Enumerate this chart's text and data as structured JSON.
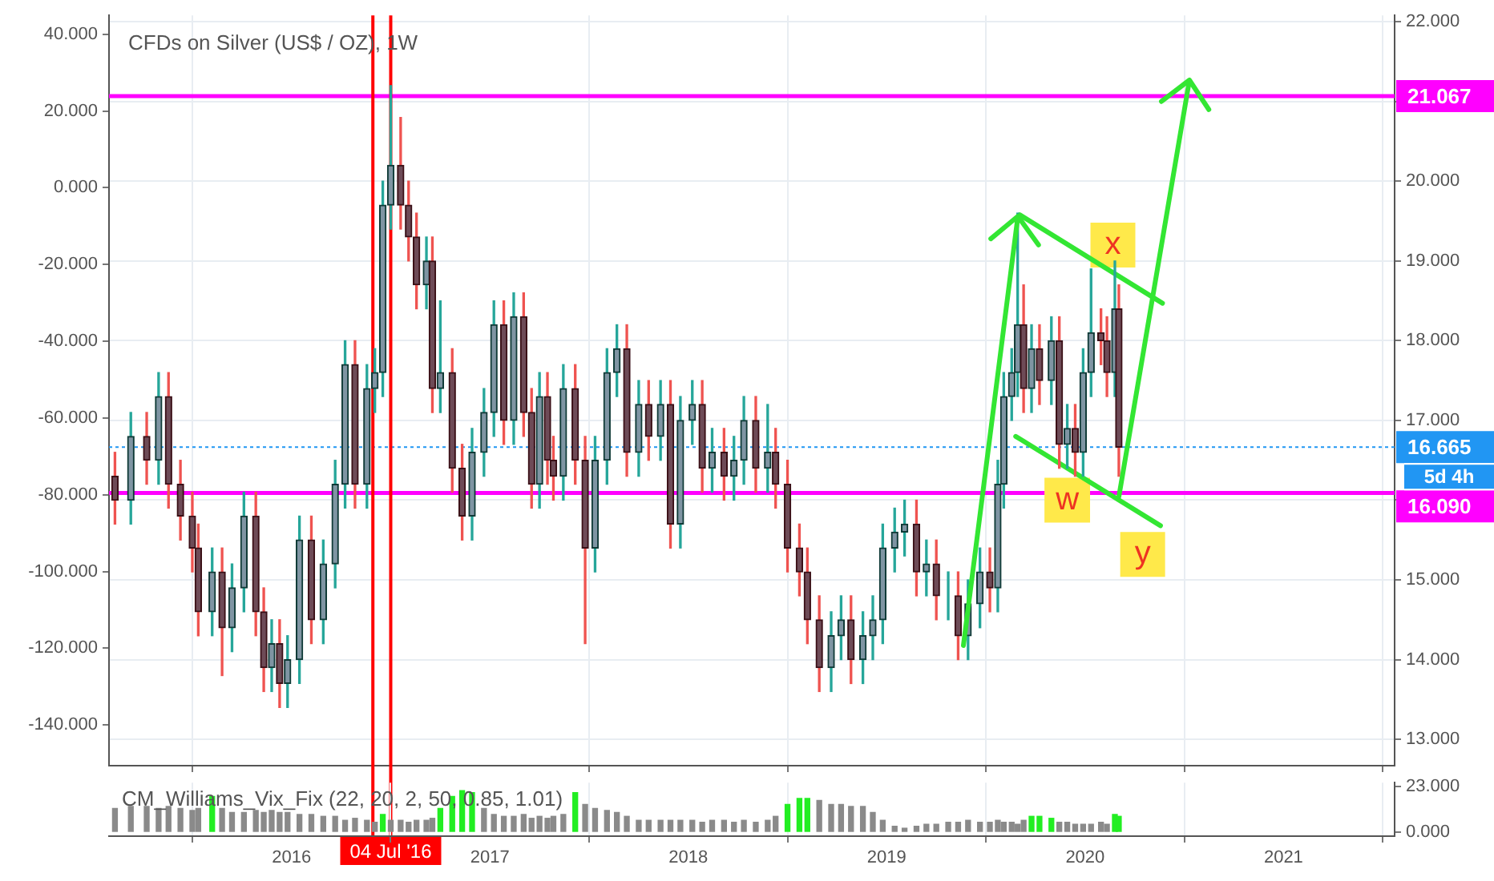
{
  "chart_data": [
    {
      "type": "candlestick",
      "title": "CFDs on Silver (US$ / OZ), 1W",
      "x": [
        2015.11,
        2015.19,
        2015.27,
        2015.33,
        2015.38,
        2015.44,
        2015.5,
        2015.53,
        2015.6,
        2015.65,
        2015.7,
        2015.76,
        2015.82,
        2015.86,
        2015.9,
        2015.94,
        2015.98,
        2016.04,
        2016.1,
        2016.16,
        2016.22,
        2016.27,
        2016.32,
        2016.38,
        2016.42,
        2016.46,
        2016.5,
        2016.55,
        2016.59,
        2016.63,
        2016.68,
        2016.71,
        2016.75,
        2016.81,
        2016.86,
        2016.91,
        2016.97,
        2017.02,
        2017.07,
        2017.12,
        2017.17,
        2017.21,
        2017.25,
        2017.29,
        2017.32,
        2017.37,
        2017.43,
        2017.48,
        2017.53,
        2017.59,
        2017.64,
        2017.69,
        2017.75,
        2017.8,
        2017.86,
        2017.91,
        2017.96,
        2018.02,
        2018.07,
        2018.12,
        2018.18,
        2018.23,
        2018.28,
        2018.34,
        2018.4,
        2018.44,
        2018.5,
        2018.56,
        2018.6,
        2018.66,
        2018.72,
        2018.77,
        2018.82,
        2018.88,
        2018.93,
        2018.98,
        2019.04,
        2019.09,
        2019.15,
        2019.2,
        2019.25,
        2019.31,
        2019.36,
        2019.41,
        2019.47,
        2019.52,
        2019.56,
        2019.59,
        2019.63,
        2019.66,
        2019.69,
        2019.73,
        2019.77,
        2019.83,
        2019.87,
        2019.91,
        2019.95,
        2019.99,
        2020.03,
        2020.08,
        2020.11,
        2020.15,
        2020.17
      ],
      "ohlc": [
        [
          16.3,
          16.6,
          15.7,
          16.0
        ],
        [
          16.0,
          17.1,
          15.7,
          16.8
        ],
        [
          16.8,
          17.1,
          16.2,
          16.5
        ],
        [
          16.5,
          17.6,
          16.2,
          17.3
        ],
        [
          17.3,
          17.6,
          15.9,
          16.2
        ],
        [
          16.2,
          16.5,
          15.5,
          15.8
        ],
        [
          15.8,
          16.1,
          15.1,
          15.4
        ],
        [
          15.4,
          15.7,
          14.3,
          14.6
        ],
        [
          14.6,
          15.4,
          14.3,
          15.1
        ],
        [
          15.1,
          15.4,
          13.8,
          14.4
        ],
        [
          14.4,
          15.2,
          14.1,
          14.9
        ],
        [
          14.9,
          16.1,
          14.6,
          15.8
        ],
        [
          15.8,
          16.1,
          14.3,
          14.6
        ],
        [
          14.6,
          14.9,
          13.6,
          13.9
        ],
        [
          13.9,
          14.5,
          13.6,
          14.2
        ],
        [
          14.2,
          14.5,
          13.4,
          13.7
        ],
        [
          13.7,
          14.3,
          13.4,
          14.0
        ],
        [
          14.0,
          15.8,
          13.7,
          15.5
        ],
        [
          15.5,
          15.8,
          14.2,
          14.5
        ],
        [
          14.5,
          15.5,
          14.2,
          15.2
        ],
        [
          15.2,
          16.5,
          14.9,
          16.2
        ],
        [
          16.2,
          18.0,
          15.9,
          17.7
        ],
        [
          17.7,
          18.0,
          15.9,
          16.2
        ],
        [
          16.2,
          17.7,
          15.9,
          17.4
        ],
        [
          17.4,
          17.9,
          17.1,
          17.6
        ],
        [
          17.6,
          20.0,
          17.3,
          19.7
        ],
        [
          19.7,
          21.2,
          19.4,
          20.2
        ],
        [
          20.2,
          20.8,
          19.4,
          19.7
        ],
        [
          19.7,
          20.0,
          19.0,
          19.3
        ],
        [
          19.3,
          19.6,
          18.4,
          18.7
        ],
        [
          18.7,
          19.3,
          18.4,
          19.0
        ],
        [
          19.0,
          19.3,
          17.1,
          17.4
        ],
        [
          17.4,
          18.5,
          17.1,
          17.6
        ],
        [
          17.6,
          17.9,
          16.1,
          16.4
        ],
        [
          16.4,
          16.7,
          15.5,
          15.8
        ],
        [
          15.8,
          16.9,
          15.5,
          16.6
        ],
        [
          16.6,
          17.4,
          16.3,
          17.1
        ],
        [
          17.1,
          18.5,
          16.8,
          18.2
        ],
        [
          18.2,
          18.5,
          16.7,
          17.0
        ],
        [
          17.0,
          18.6,
          16.7,
          18.3
        ],
        [
          18.3,
          18.6,
          16.8,
          17.1
        ],
        [
          17.1,
          17.4,
          15.9,
          16.2
        ],
        [
          16.2,
          17.6,
          15.9,
          17.3
        ],
        [
          17.3,
          17.6,
          16.2,
          16.5
        ],
        [
          16.5,
          16.8,
          16.0,
          16.3
        ],
        [
          16.3,
          17.7,
          16.0,
          17.4
        ],
        [
          17.4,
          17.7,
          16.2,
          16.5
        ],
        [
          16.5,
          16.8,
          14.2,
          15.4
        ],
        [
          15.4,
          16.8,
          15.1,
          16.5
        ],
        [
          16.5,
          17.9,
          16.2,
          17.6
        ],
        [
          17.6,
          18.2,
          17.3,
          17.9
        ],
        [
          17.9,
          18.2,
          16.3,
          16.6
        ],
        [
          16.6,
          17.5,
          16.3,
          17.2
        ],
        [
          17.2,
          17.5,
          16.5,
          16.8
        ],
        [
          16.8,
          17.5,
          16.5,
          17.2
        ],
        [
          17.2,
          17.5,
          15.4,
          15.7
        ],
        [
          15.7,
          17.3,
          15.4,
          17.0
        ],
        [
          17.0,
          17.5,
          16.7,
          17.2
        ],
        [
          17.2,
          17.5,
          16.1,
          16.4
        ],
        [
          16.4,
          16.9,
          16.1,
          16.6
        ],
        [
          16.6,
          16.9,
          16.0,
          16.3
        ],
        [
          16.3,
          16.8,
          16.0,
          16.5
        ],
        [
          16.5,
          17.3,
          16.2,
          17.0
        ],
        [
          17.0,
          17.3,
          16.1,
          16.4
        ],
        [
          16.4,
          17.2,
          16.1,
          16.6
        ],
        [
          16.6,
          16.9,
          15.9,
          16.2
        ],
        [
          16.2,
          16.5,
          15.1,
          15.4
        ],
        [
          15.4,
          15.7,
          14.8,
          15.1
        ],
        [
          15.1,
          15.4,
          14.2,
          14.5
        ],
        [
          14.5,
          14.8,
          13.6,
          13.9
        ],
        [
          13.9,
          14.6,
          13.6,
          14.3
        ],
        [
          14.3,
          14.8,
          14.0,
          14.5
        ],
        [
          14.5,
          14.8,
          13.7,
          14.0
        ],
        [
          14.0,
          14.6,
          13.7,
          14.3
        ],
        [
          14.3,
          14.8,
          14.0,
          14.5
        ],
        [
          14.5,
          15.7,
          14.2,
          15.4
        ],
        [
          15.4,
          15.9,
          15.1,
          15.6
        ],
        [
          15.6,
          16.0,
          15.3,
          15.7
        ],
        [
          15.7,
          16.0,
          14.8,
          15.1
        ],
        [
          15.1,
          15.5,
          14.8,
          15.2
        ],
        [
          15.2,
          15.5,
          14.5,
          14.8
        ],
        [
          14.8,
          15.1,
          14.5,
          14.8
        ],
        [
          14.8,
          15.1,
          14.0,
          14.3
        ],
        [
          14.3,
          15.0,
          14.0,
          14.7
        ],
        [
          14.7,
          15.4,
          14.4,
          15.1
        ],
        [
          15.1,
          15.4,
          14.6,
          14.9
        ],
        [
          14.9,
          16.5,
          14.6,
          16.2
        ],
        [
          16.2,
          17.6,
          15.9,
          17.3
        ],
        [
          17.3,
          17.9,
          17.0,
          17.6
        ],
        [
          17.6,
          19.6,
          17.3,
          18.2
        ],
        [
          18.2,
          18.7,
          17.1,
          17.4
        ],
        [
          17.4,
          18.2,
          17.1,
          17.9
        ],
        [
          17.9,
          18.2,
          17.2,
          17.5
        ],
        [
          17.5,
          18.3,
          17.2,
          18.0
        ],
        [
          18.0,
          18.3,
          16.4,
          16.7
        ],
        [
          16.7,
          17.2,
          16.4,
          16.9
        ],
        [
          16.9,
          17.2,
          16.3,
          16.6
        ],
        [
          16.6,
          17.9,
          16.3,
          17.6
        ],
        [
          17.6,
          18.9,
          17.3,
          18.1
        ],
        [
          18.1,
          18.4,
          17.7,
          18.0
        ],
        [
          18.0,
          18.3,
          17.3,
          17.6
        ],
        [
          17.6,
          19.0,
          17.3,
          18.4
        ],
        [
          18.4,
          18.7,
          16.3,
          16.665
        ]
      ],
      "series": [
        {
          "type": "line",
          "color": "#33e633",
          "x": [
            2019.67,
            2020.39
          ],
          "values": [
            19.58,
            18.47
          ]
        },
        {
          "type": "line",
          "color": "#33e633",
          "x": [
            2019.65,
            2020.38
          ],
          "values": [
            16.8,
            15.68
          ]
        }
      ],
      "xlim": [
        2015.08,
        2021.56
      ],
      "xticks": [
        2016,
        2017,
        2018,
        2019,
        2020,
        2021
      ],
      "ylim": [
        12.67,
        22.08
      ],
      "yticks": [
        {
          "value": 13,
          "label": "13.000"
        },
        {
          "value": 14,
          "label": "14.000"
        },
        {
          "value": 15,
          "label": "15.000"
        },
        {
          "value": 16,
          "label": null
        },
        {
          "value": 17,
          "label": "17.000"
        },
        {
          "value": 18,
          "label": "18.000"
        },
        {
          "value": 19,
          "label": "19.000"
        },
        {
          "value": 20,
          "label": "20.000"
        },
        {
          "value": 21,
          "label": null
        },
        {
          "value": 22,
          "label": "22.000"
        }
      ],
      "y2lim": [
        -150.6,
        44.9
      ],
      "y2ticks": [
        {
          "value": -140,
          "label": "-140.000"
        },
        {
          "value": -120,
          "label": "-120.000"
        },
        {
          "value": -100,
          "label": "-100.000"
        },
        {
          "value": -80,
          "label": "-80.000"
        },
        {
          "value": -60,
          "label": "-60.000"
        },
        {
          "value": -40,
          "label": "-40.000"
        },
        {
          "value": -20,
          "label": "-20.000"
        },
        {
          "value": 0,
          "label": "0.000"
        },
        {
          "value": 20,
          "label": "20.000"
        },
        {
          "value": 40,
          "label": "40.000"
        }
      ],
      "ref_lines": [
        {
          "axis": "y",
          "value": 21.067,
          "label": "21.067",
          "color": "#ff00ff",
          "line_style": "solid"
        },
        {
          "axis": "y",
          "value": 16.09,
          "label": "16.090",
          "color": "#ff00ff",
          "line_style": "solid"
        },
        {
          "axis": "y",
          "value": 16.665,
          "label": "16.665",
          "color": "#2196f3",
          "line_style": "dotted"
        },
        {
          "axis": "x",
          "value": 2016.41,
          "color": "#ff0000",
          "line_style": "solid"
        },
        {
          "axis": "x",
          "value": 2016.5,
          "label": "04 Jul '16",
          "color": "#ff0000",
          "line_style": "solid"
        }
      ],
      "annotations": [
        "5d 4h",
        {
          "text": "x",
          "x": 2020.14,
          "y": 19.2
        },
        {
          "text": "w",
          "x": 2019.91,
          "y": 16.0
        },
        {
          "text": "y",
          "x": 2020.29,
          "y": 15.32
        }
      ],
      "grid": true,
      "tick_labels": "y"
    },
    {
      "type": "bar",
      "title": "CM_Williams_Vix_Fix (22, 20, 2, 50, 0.85, 1.01)",
      "x": [
        2015.11,
        2015.19,
        2015.27,
        2015.33,
        2015.38,
        2015.44,
        2015.5,
        2015.53,
        2015.6,
        2015.65,
        2015.7,
        2015.76,
        2015.82,
        2015.86,
        2015.9,
        2015.94,
        2015.98,
        2016.04,
        2016.1,
        2016.16,
        2016.22,
        2016.27,
        2016.32,
        2016.38,
        2016.42,
        2016.46,
        2016.5,
        2016.55,
        2016.59,
        2016.63,
        2016.68,
        2016.71,
        2016.75,
        2016.81,
        2016.86,
        2016.91,
        2016.97,
        2017.02,
        2017.07,
        2017.12,
        2017.17,
        2017.21,
        2017.25,
        2017.29,
        2017.32,
        2017.37,
        2017.43,
        2017.48,
        2017.53,
        2017.59,
        2017.64,
        2017.69,
        2017.75,
        2017.8,
        2017.86,
        2017.91,
        2017.96,
        2018.02,
        2018.07,
        2018.12,
        2018.18,
        2018.23,
        2018.28,
        2018.34,
        2018.4,
        2018.44,
        2018.5,
        2018.56,
        2018.6,
        2018.66,
        2018.72,
        2018.77,
        2018.82,
        2018.88,
        2018.93,
        2018.98,
        2019.04,
        2019.09,
        2019.15,
        2019.2,
        2019.25,
        2019.31,
        2019.36,
        2019.41,
        2019.47,
        2019.52,
        2019.56,
        2019.59,
        2019.63,
        2019.66,
        2019.69,
        2019.73,
        2019.77,
        2019.83,
        2019.87,
        2019.91,
        2019.95,
        2019.99,
        2020.03,
        2020.08,
        2020.11,
        2020.15,
        2020.17
      ],
      "values": [
        12,
        13,
        13,
        12,
        13,
        12,
        11,
        12,
        18,
        12,
        10,
        10,
        11,
        10,
        11,
        10,
        10,
        9,
        9,
        8,
        8,
        6,
        7,
        6,
        5,
        9,
        6,
        6,
        5,
        6,
        6,
        7,
        12,
        18,
        21,
        20,
        12,
        9,
        8,
        8,
        9,
        7,
        8,
        7,
        8,
        9,
        20,
        14,
        12,
        11,
        10,
        8,
        6,
        6,
        6,
        6,
        6,
        6,
        5,
        6,
        6,
        5,
        6,
        5,
        6,
        8,
        14,
        17,
        17,
        16,
        14,
        14,
        13,
        13,
        10,
        6,
        3,
        2,
        3,
        4,
        4,
        5,
        5,
        6,
        5,
        5,
        6,
        5,
        5,
        4,
        6,
        8,
        8,
        7,
        5,
        5,
        4,
        4,
        4,
        5,
        4,
        9,
        8
      ],
      "colors": [
        "#8a8a8a",
        "#8a8a8a",
        "#8a8a8a",
        "#8a8a8a",
        "#8a8a8a",
        "#8a8a8a",
        "#8a8a8a",
        "#8a8a8a",
        "#22ee22",
        "#8a8a8a",
        "#8a8a8a",
        "#8a8a8a",
        "#8a8a8a",
        "#8a8a8a",
        "#8a8a8a",
        "#8a8a8a",
        "#8a8a8a",
        "#8a8a8a",
        "#8a8a8a",
        "#8a8a8a",
        "#8a8a8a",
        "#8a8a8a",
        "#8a8a8a",
        "#8a8a8a",
        "#8a8a8a",
        "#22ee22",
        "#8a8a8a",
        "#8a8a8a",
        "#8a8a8a",
        "#8a8a8a",
        "#8a8a8a",
        "#8a8a8a",
        "#22ee22",
        "#22ee22",
        "#22ee22",
        "#22ee22",
        "#8a8a8a",
        "#8a8a8a",
        "#8a8a8a",
        "#8a8a8a",
        "#8a8a8a",
        "#8a8a8a",
        "#8a8a8a",
        "#8a8a8a",
        "#8a8a8a",
        "#8a8a8a",
        "#22ee22",
        "#8a8a8a",
        "#8a8a8a",
        "#8a8a8a",
        "#8a8a8a",
        "#8a8a8a",
        "#8a8a8a",
        "#8a8a8a",
        "#8a8a8a",
        "#8a8a8a",
        "#8a8a8a",
        "#8a8a8a",
        "#8a8a8a",
        "#8a8a8a",
        "#8a8a8a",
        "#8a8a8a",
        "#8a8a8a",
        "#8a8a8a",
        "#8a8a8a",
        "#8a8a8a",
        "#22ee22",
        "#22ee22",
        "#22ee22",
        "#8a8a8a",
        "#8a8a8a",
        "#8a8a8a",
        "#8a8a8a",
        "#8a8a8a",
        "#8a8a8a",
        "#8a8a8a",
        "#8a8a8a",
        "#8a8a8a",
        "#8a8a8a",
        "#8a8a8a",
        "#8a8a8a",
        "#8a8a8a",
        "#8a8a8a",
        "#8a8a8a",
        "#8a8a8a",
        "#8a8a8a",
        "#8a8a8a",
        "#8a8a8a",
        "#8a8a8a",
        "#8a8a8a",
        "#8a8a8a",
        "#22ee22",
        "#22ee22",
        "#22ee22",
        "#8a8a8a",
        "#8a8a8a",
        "#8a8a8a",
        "#8a8a8a",
        "#8a8a8a",
        "#8a8a8a",
        "#8a8a8a",
        "#22ee22",
        "#22ee22"
      ],
      "xlim": [
        2015.08,
        2021.56
      ],
      "xticks": [
        2016,
        2017,
        2018,
        2019,
        2020,
        2021
      ],
      "ylim": [
        -2,
        25
      ],
      "yticks": [
        {
          "value": 0,
          "label": "0.000"
        },
        {
          "value": 23,
          "label": "23.000"
        }
      ],
      "grid": "x"
    }
  ]
}
